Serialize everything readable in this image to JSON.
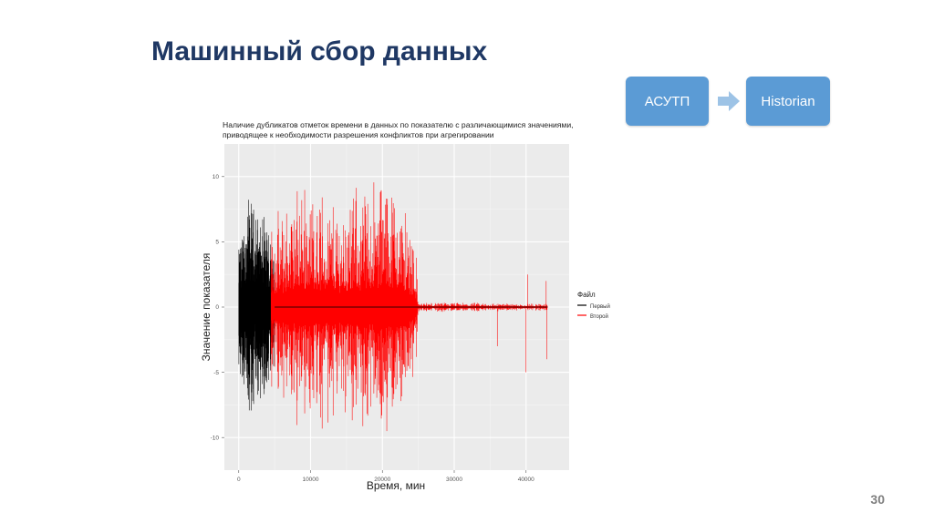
{
  "slide": {
    "title": "Машинный сбор данных",
    "page_number": "30"
  },
  "flow": {
    "source_label": "АСУТП",
    "target_label": "Historian",
    "box_color": "#5b9bd5",
    "arrow_color": "#9dc3e6",
    "arrow_icon": "right-arrow-icon"
  },
  "chart_data": {
    "type": "line",
    "title_line1": "Наличие дубликатов отметок времени в данных по показателю с различающимися значениями,",
    "title_line2": "приводящее к необходимости разрешения конфликтов при агрегировании",
    "xlabel": "Время, мин",
    "ylabel": "Значение показателя",
    "xlim": [
      -2000,
      46000
    ],
    "ylim": [
      -12.5,
      12.5
    ],
    "x_ticks": [
      0,
      10000,
      20000,
      30000,
      40000
    ],
    "x_tick_labels": [
      "0",
      "10000",
      "20000",
      "30000",
      "40000"
    ],
    "y_ticks": [
      -10,
      -5,
      0,
      5,
      10
    ],
    "y_tick_labels": [
      "-10",
      "-5",
      "0",
      "5",
      "10"
    ],
    "grid": true,
    "legend": {
      "title": "Файл",
      "position": "right"
    },
    "series": [
      {
        "name": "Первый",
        "color": "#000000",
        "x_range": [
          0,
          5000
        ],
        "amplitude_envelope": [
          {
            "x": 0,
            "amp": 5.0
          },
          {
            "x": 1000,
            "amp": 9.5
          },
          {
            "x": 2500,
            "amp": 8.0
          },
          {
            "x": 4000,
            "amp": 7.0
          },
          {
            "x": 5000,
            "amp": 6.0
          }
        ]
      },
      {
        "name": "Второй",
        "color": "#ff0000",
        "x_range": [
          4500,
          43000
        ],
        "amplitude_envelope": [
          {
            "x": 4500,
            "amp": 7.0
          },
          {
            "x": 9000,
            "amp": 11.0
          },
          {
            "x": 14000,
            "amp": 9.0
          },
          {
            "x": 21000,
            "amp": 12.0
          },
          {
            "x": 24500,
            "amp": 7.0
          },
          {
            "x": 25000,
            "amp": 0.4
          },
          {
            "x": 43000,
            "amp": 0.3
          }
        ],
        "spikes": [
          {
            "x": 36000,
            "y": -3.0
          },
          {
            "x": 40000,
            "y": -5.0
          },
          {
            "x": 40200,
            "y": 2.5
          },
          {
            "x": 42800,
            "y": 2.0
          },
          {
            "x": 42900,
            "y": -4.0
          }
        ]
      }
    ]
  }
}
